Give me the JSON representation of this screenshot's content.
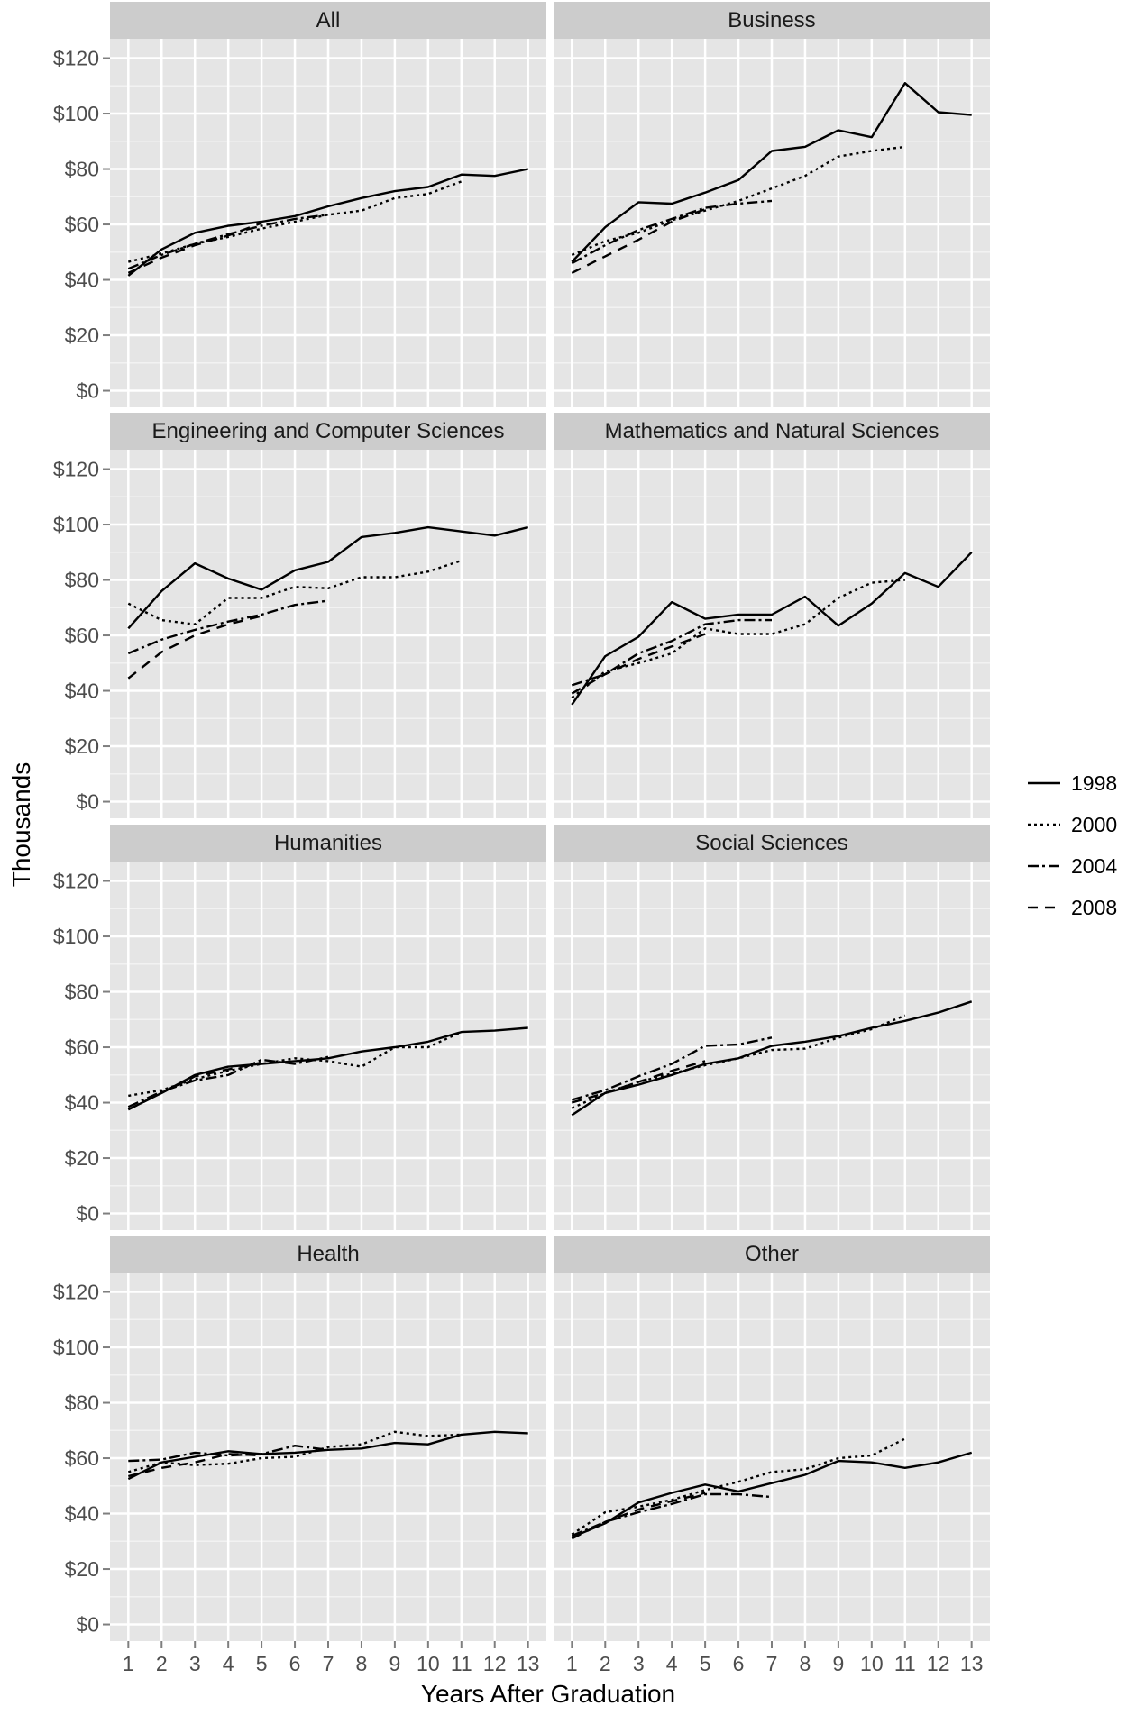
{
  "chart_data": {
    "type": "line",
    "title": "",
    "xlabel": "Years After Graduation",
    "ylabel": "Thousands",
    "x": [
      1,
      2,
      3,
      4,
      5,
      6,
      7,
      8,
      9,
      10,
      11,
      12,
      13
    ],
    "x_ticks": [
      "1",
      "2",
      "3",
      "4",
      "5",
      "6",
      "7",
      "8",
      "9",
      "10",
      "11",
      "12",
      "13"
    ],
    "ylim": [
      -6,
      127
    ],
    "y_ticks": [
      {
        "value": 0,
        "label": "$0"
      },
      {
        "value": 20,
        "label": "$20"
      },
      {
        "value": 40,
        "label": "$40"
      },
      {
        "value": 60,
        "label": "$60"
      },
      {
        "value": 80,
        "label": "$80"
      },
      {
        "value": 100,
        "label": "$100"
      },
      {
        "value": 120,
        "label": "$120"
      }
    ],
    "grid": true,
    "legend_position": "right",
    "legend": [
      {
        "name": "1998",
        "dash": "solid"
      },
      {
        "name": "2000",
        "dash": "dotted"
      },
      {
        "name": "2004",
        "dash": "dotdash"
      },
      {
        "name": "2008",
        "dash": "dashed"
      }
    ],
    "panels": [
      {
        "title": "All",
        "series": [
          {
            "name": "1998",
            "values": [
              41.5,
              51,
              57,
              59.5,
              61,
              63,
              66.5,
              69.5,
              72,
              73.5,
              78,
              77.5,
              80
            ]
          },
          {
            "name": "2000",
            "values": [
              46.5,
              49.5,
              53,
              55.5,
              58.5,
              61,
              63.5,
              65,
              69.5,
              71,
              75.5
            ]
          },
          {
            "name": "2004",
            "values": [
              44,
              49,
              53,
              56.5,
              59.5,
              62,
              63.5
            ]
          },
          {
            "name": "2008",
            "values": [
              42.5,
              48,
              52.5,
              56,
              60.5
            ]
          }
        ]
      },
      {
        "title": "Business",
        "series": [
          {
            "name": "1998",
            "values": [
              46.5,
              59,
              68,
              67.5,
              71.5,
              76,
              86.5,
              88,
              94,
              91.5,
              111,
              100.5,
              99.5
            ]
          },
          {
            "name": "2000",
            "values": [
              49,
              54,
              57,
              61.5,
              65,
              68.5,
              73,
              77.5,
              84.5,
              86.5,
              88
            ]
          },
          {
            "name": "2004",
            "values": [
              46,
              52.5,
              58,
              62,
              66,
              67.5,
              68.5
            ]
          },
          {
            "name": "2008",
            "values": [
              42.5,
              48.5,
              54.5,
              61,
              65.5
            ]
          }
        ]
      },
      {
        "title": "Engineering and Computer Sciences",
        "series": [
          {
            "name": "1998",
            "values": [
              62.5,
              76,
              86,
              80.5,
              76.5,
              83.5,
              86.5,
              95.5,
              97,
              99,
              97.5,
              96,
              99
            ]
          },
          {
            "name": "2000",
            "values": [
              71.5,
              65.5,
              64,
              73.5,
              73.5,
              77.5,
              77,
              81,
              81,
              83,
              87
            ]
          },
          {
            "name": "2004",
            "values": [
              53.5,
              58.5,
              62,
              65,
              67.5,
              71,
              72.5
            ]
          },
          {
            "name": "2008",
            "values": [
              44.5,
              54,
              60,
              64,
              67
            ]
          }
        ]
      },
      {
        "title": "Mathematics and Natural Sciences",
        "series": [
          {
            "name": "1998",
            "values": [
              35,
              52.5,
              59.5,
              72,
              66,
              67.5,
              67.5,
              74,
              63.5,
              71.5,
              82.5,
              77.5,
              90
            ]
          },
          {
            "name": "2000",
            "values": [
              37.5,
              47,
              50,
              53.5,
              62.5,
              60.5,
              60.5,
              64,
              73.5,
              79,
              80
            ]
          },
          {
            "name": "2004",
            "values": [
              42,
              46,
              53.5,
              58,
              64,
              65.5,
              65.5
            ]
          },
          {
            "name": "2008",
            "values": [
              39,
              46,
              51.5,
              56,
              60.5
            ]
          }
        ]
      },
      {
        "title": "Humanities",
        "series": [
          {
            "name": "1998",
            "values": [
              37.5,
              43.5,
              50,
              53,
              54,
              55,
              56,
              58.5,
              60,
              62,
              65.5,
              66,
              67
            ]
          },
          {
            "name": "2000",
            "values": [
              42.5,
              44.5,
              48.5,
              51.5,
              54,
              56,
              55,
              53,
              60,
              60,
              65.5
            ]
          },
          {
            "name": "2004",
            "values": [
              38.5,
              44,
              48,
              50,
              55.5,
              54,
              56.5
            ]
          },
          {
            "name": "2008",
            "values": [
              37.5,
              43.5,
              49.5,
              52,
              54.5
            ]
          }
        ]
      },
      {
        "title": "Social Sciences",
        "series": [
          {
            "name": "1998",
            "values": [
              35.5,
              43.5,
              46.5,
              50,
              54,
              56,
              60.5,
              62,
              64,
              67,
              69.5,
              72.5,
              76.5
            ]
          },
          {
            "name": "2000",
            "values": [
              38,
              43.5,
              47.5,
              50.5,
              53.5,
              56,
              59,
              59.5,
              63.5,
              66.5,
              71.5
            ]
          },
          {
            "name": "2004",
            "values": [
              41,
              44.5,
              49.5,
              54,
              60.5,
              61,
              63.5
            ]
          },
          {
            "name": "2008",
            "values": [
              40,
              43.5,
              47.5,
              51.5,
              55
            ]
          }
        ]
      },
      {
        "title": "Health",
        "series": [
          {
            "name": "1998",
            "values": [
              52.5,
              58.5,
              60.5,
              62.5,
              61.5,
              62,
              63,
              63.5,
              65.5,
              65,
              68.5,
              69.5,
              69
            ]
          },
          {
            "name": "2000",
            "values": [
              55,
              58.5,
              57.5,
              58,
              60,
              60.5,
              64,
              65,
              69.5,
              68,
              68.5
            ]
          },
          {
            "name": "2004",
            "values": [
              59,
              59.5,
              62,
              61,
              61.5,
              64.5,
              63
            ]
          },
          {
            "name": "2008",
            "values": [
              53.5,
              56.5,
              58.5,
              61.5,
              61
            ]
          }
        ]
      },
      {
        "title": "Other",
        "series": [
          {
            "name": "1998",
            "values": [
              31.5,
              36.5,
              44,
              47.5,
              50.5,
              48,
              51,
              54,
              59,
              58.5,
              56.5,
              58.5,
              62
            ]
          },
          {
            "name": "2000",
            "values": [
              32.5,
              40.5,
              42.5,
              45,
              48.5,
              51.5,
              55,
              56,
              60,
              61,
              67
            ]
          },
          {
            "name": "2004",
            "values": [
              32,
              37,
              40.5,
              43.5,
              47,
              47,
              46
            ]
          },
          {
            "name": "2008",
            "values": [
              31,
              37,
              41.5,
              44.5,
              47.5
            ]
          }
        ]
      }
    ]
  }
}
